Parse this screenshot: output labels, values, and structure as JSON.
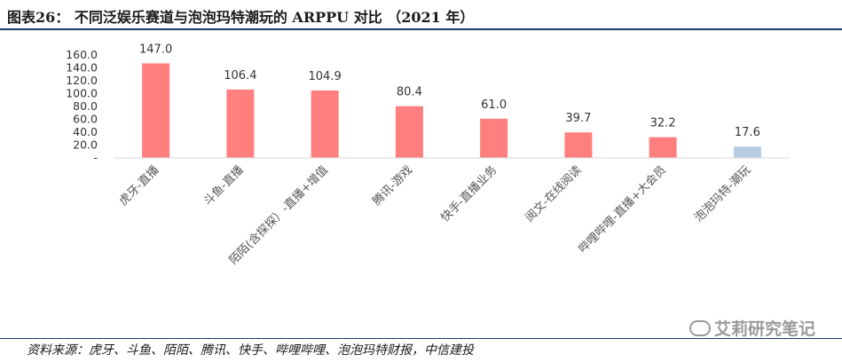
{
  "header": {
    "title": "图表26： 不同泛娱乐赛道与泡泡玛特潮玩的 ARPPU 对比 （2021 年）"
  },
  "footer": {
    "source": "资料来源：虎牙、斗鱼、陌陌、腾讯、快手、哔哩哔哩、泡泡玛特财报，中信建投",
    "watermark": "艾莉研究笔记"
  },
  "colors": {
    "bar_default": "#ff7f7f",
    "bar_highlight": "#b8cde4",
    "axis": "#d9d9d9",
    "rule": "#1f3a6b"
  },
  "chart_data": {
    "type": "bar",
    "categories": [
      "虎牙-直播",
      "斗鱼-直播",
      "陌陌(含探探）-直播+增值",
      "腾讯-游戏",
      "快手-直播业务",
      "阅文-在线阅读",
      "哔哩哔哩-直播+大会员",
      "泡泡玛特-潮玩"
    ],
    "values": [
      147.0,
      106.4,
      104.9,
      80.4,
      61.0,
      39.7,
      32.2,
      17.6
    ],
    "data_labels": [
      "147.0",
      "106.4",
      "104.9",
      "80.4",
      "61.0",
      "39.7",
      "32.2",
      "17.6"
    ],
    "highlight_index": 7,
    "ylim": [
      0,
      160
    ],
    "yticks": [
      {
        "value": 0,
        "label": "-"
      },
      {
        "value": 20,
        "label": "20.0"
      },
      {
        "value": 40,
        "label": "40.0"
      },
      {
        "value": 60,
        "label": "60.0"
      },
      {
        "value": 80,
        "label": "80.0"
      },
      {
        "value": 100,
        "label": "100.0"
      },
      {
        "value": 120,
        "label": "120.0"
      },
      {
        "value": 140,
        "label": "140.0"
      },
      {
        "value": 160,
        "label": "160.0"
      }
    ],
    "grid": false,
    "legend": "none",
    "title": "",
    "xlabel": "",
    "ylabel": ""
  }
}
